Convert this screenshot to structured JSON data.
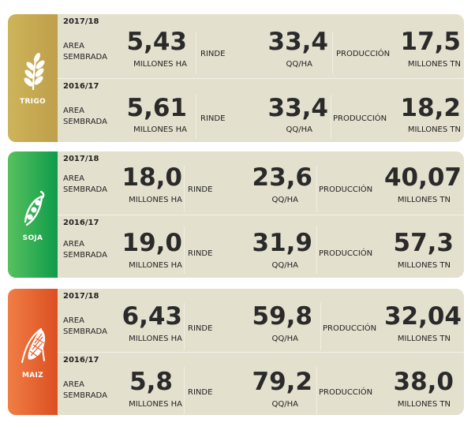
{
  "labels": {
    "area": "AREA SEMBRADA",
    "rinde": "RINDE",
    "produccion": "PRODUCCIÓN",
    "unit_area": "MILLONES HA",
    "unit_rinde": "QQ/HA",
    "unit_prod": "MILLONES TN"
  },
  "colors": {
    "trigo": "#c4a653",
    "soja": "#1fa552",
    "maiz": "#e5602f",
    "panel": "#e4e0ce"
  },
  "crops": [
    {
      "name": "TRIGO",
      "icon": "wheat-icon",
      "seasons": [
        {
          "year": "2017/18",
          "area": "5,43",
          "rinde": "33,4",
          "produccion": "17,5"
        },
        {
          "year": "2016/17",
          "area": "5,61",
          "rinde": "33,4",
          "produccion": "18,2"
        }
      ]
    },
    {
      "name": "SOJA",
      "icon": "soybean-icon",
      "seasons": [
        {
          "year": "2017/18",
          "area": "18,0",
          "rinde": "23,6",
          "produccion": "40,07"
        },
        {
          "year": "2016/17",
          "area": "19,0",
          "rinde": "31,9",
          "produccion": "57,3"
        }
      ]
    },
    {
      "name": "MAIZ",
      "icon": "corn-icon",
      "seasons": [
        {
          "year": "2017/18",
          "area": "6,43",
          "rinde": "59,8",
          "produccion": "32,04"
        },
        {
          "year": "2016/17",
          "area": "5,8",
          "rinde": "79,2",
          "produccion": "38,0"
        }
      ]
    }
  ]
}
